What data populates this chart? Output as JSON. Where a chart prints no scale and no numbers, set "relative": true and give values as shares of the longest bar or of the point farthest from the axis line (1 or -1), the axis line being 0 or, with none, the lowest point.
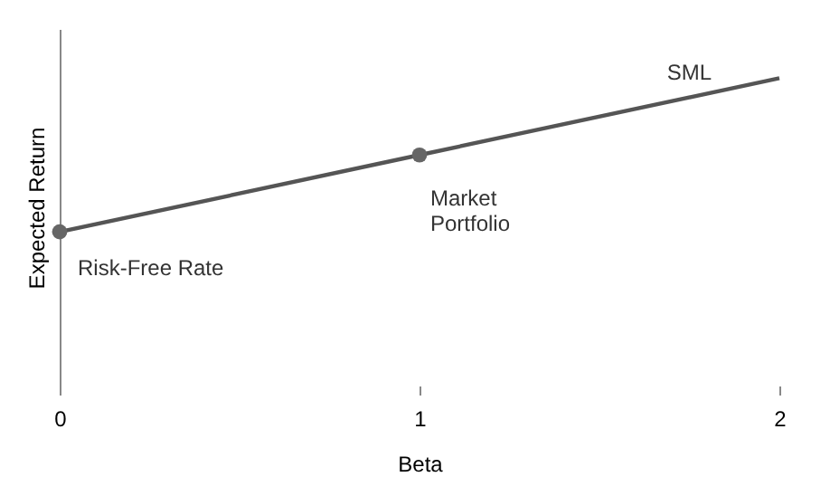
{
  "chart_data": {
    "type": "line",
    "xlabel": "Beta",
    "ylabel": "Expected Return",
    "relative": true,
    "xlim": [
      0,
      2
    ],
    "xticks": [
      0,
      1,
      2
    ],
    "tick_labels": "x",
    "grid": false,
    "legend": false,
    "line_style": "solid",
    "series": [
      {
        "marker": "none",
        "color": "#555555",
        "x": [
          0,
          1,
          2
        ],
        "values": [
          0.5,
          0.75,
          1
        ]
      },
      {
        "type": "scatter",
        "marker": "circle",
        "color": "#666666",
        "x": [
          0,
          1
        ],
        "values": [
          0.5,
          0.75
        ]
      }
    ],
    "annotations": [
      {
        "text": "Risk-Free Rate",
        "x": 0,
        "y": 0.5
      },
      {
        "text": "Market\nPortfolio",
        "x": 1,
        "y": 0.75
      },
      {
        "text": "SML",
        "x": 1.75,
        "y": 0.9375
      }
    ]
  }
}
